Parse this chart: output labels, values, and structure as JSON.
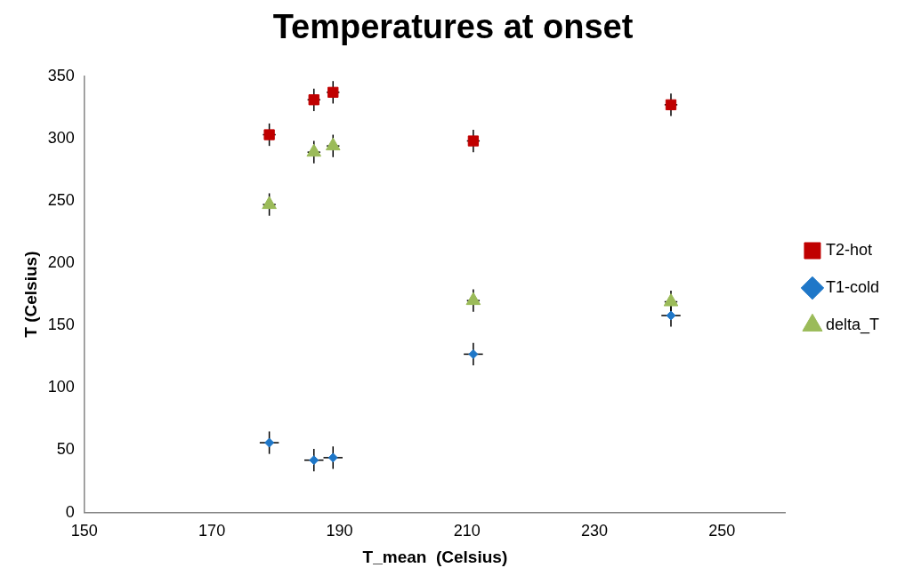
{
  "chart_data": {
    "type": "scatter",
    "title": "Temperatures at onset",
    "xlabel": "T_mean  (Celsius)",
    "ylabel": "T (Celsius)",
    "xlim": [
      150,
      260
    ],
    "xticks": [
      150,
      170,
      190,
      210,
      230,
      250
    ],
    "ylim": [
      0,
      350
    ],
    "yticks": [
      0,
      50,
      100,
      150,
      200,
      250,
      300,
      350
    ],
    "grid": false,
    "legend": "right",
    "series": [
      {
        "name": "T2-hot",
        "color": "#c00000",
        "marker": "square",
        "x": [
          179,
          186,
          189,
          211,
          242
        ],
        "values": [
          303,
          331,
          337,
          298,
          327
        ],
        "errors": [
          9,
          9,
          9,
          9,
          9
        ],
        "xerrors": [
          1,
          1,
          1,
          1,
          1
        ]
      },
      {
        "name": "T1-cold",
        "color": "#1f77c8",
        "marker": "diamond",
        "x": [
          179,
          186,
          189,
          211,
          242
        ],
        "values": [
          56,
          42,
          44,
          127,
          158
        ],
        "errors": [
          9,
          9,
          9,
          9,
          9
        ],
        "xerrors": [
          1.5,
          1.5,
          1.5,
          1.5,
          1.5
        ]
      },
      {
        "name": "delta_T",
        "color": "#9bbb59",
        "marker": "triangle",
        "x": [
          179,
          186,
          189,
          211,
          242
        ],
        "values": [
          247,
          289,
          294,
          170,
          169
        ],
        "errors": [
          9,
          9,
          9,
          9,
          9
        ],
        "xerrors": [
          1,
          1,
          1,
          1,
          1
        ]
      }
    ]
  }
}
